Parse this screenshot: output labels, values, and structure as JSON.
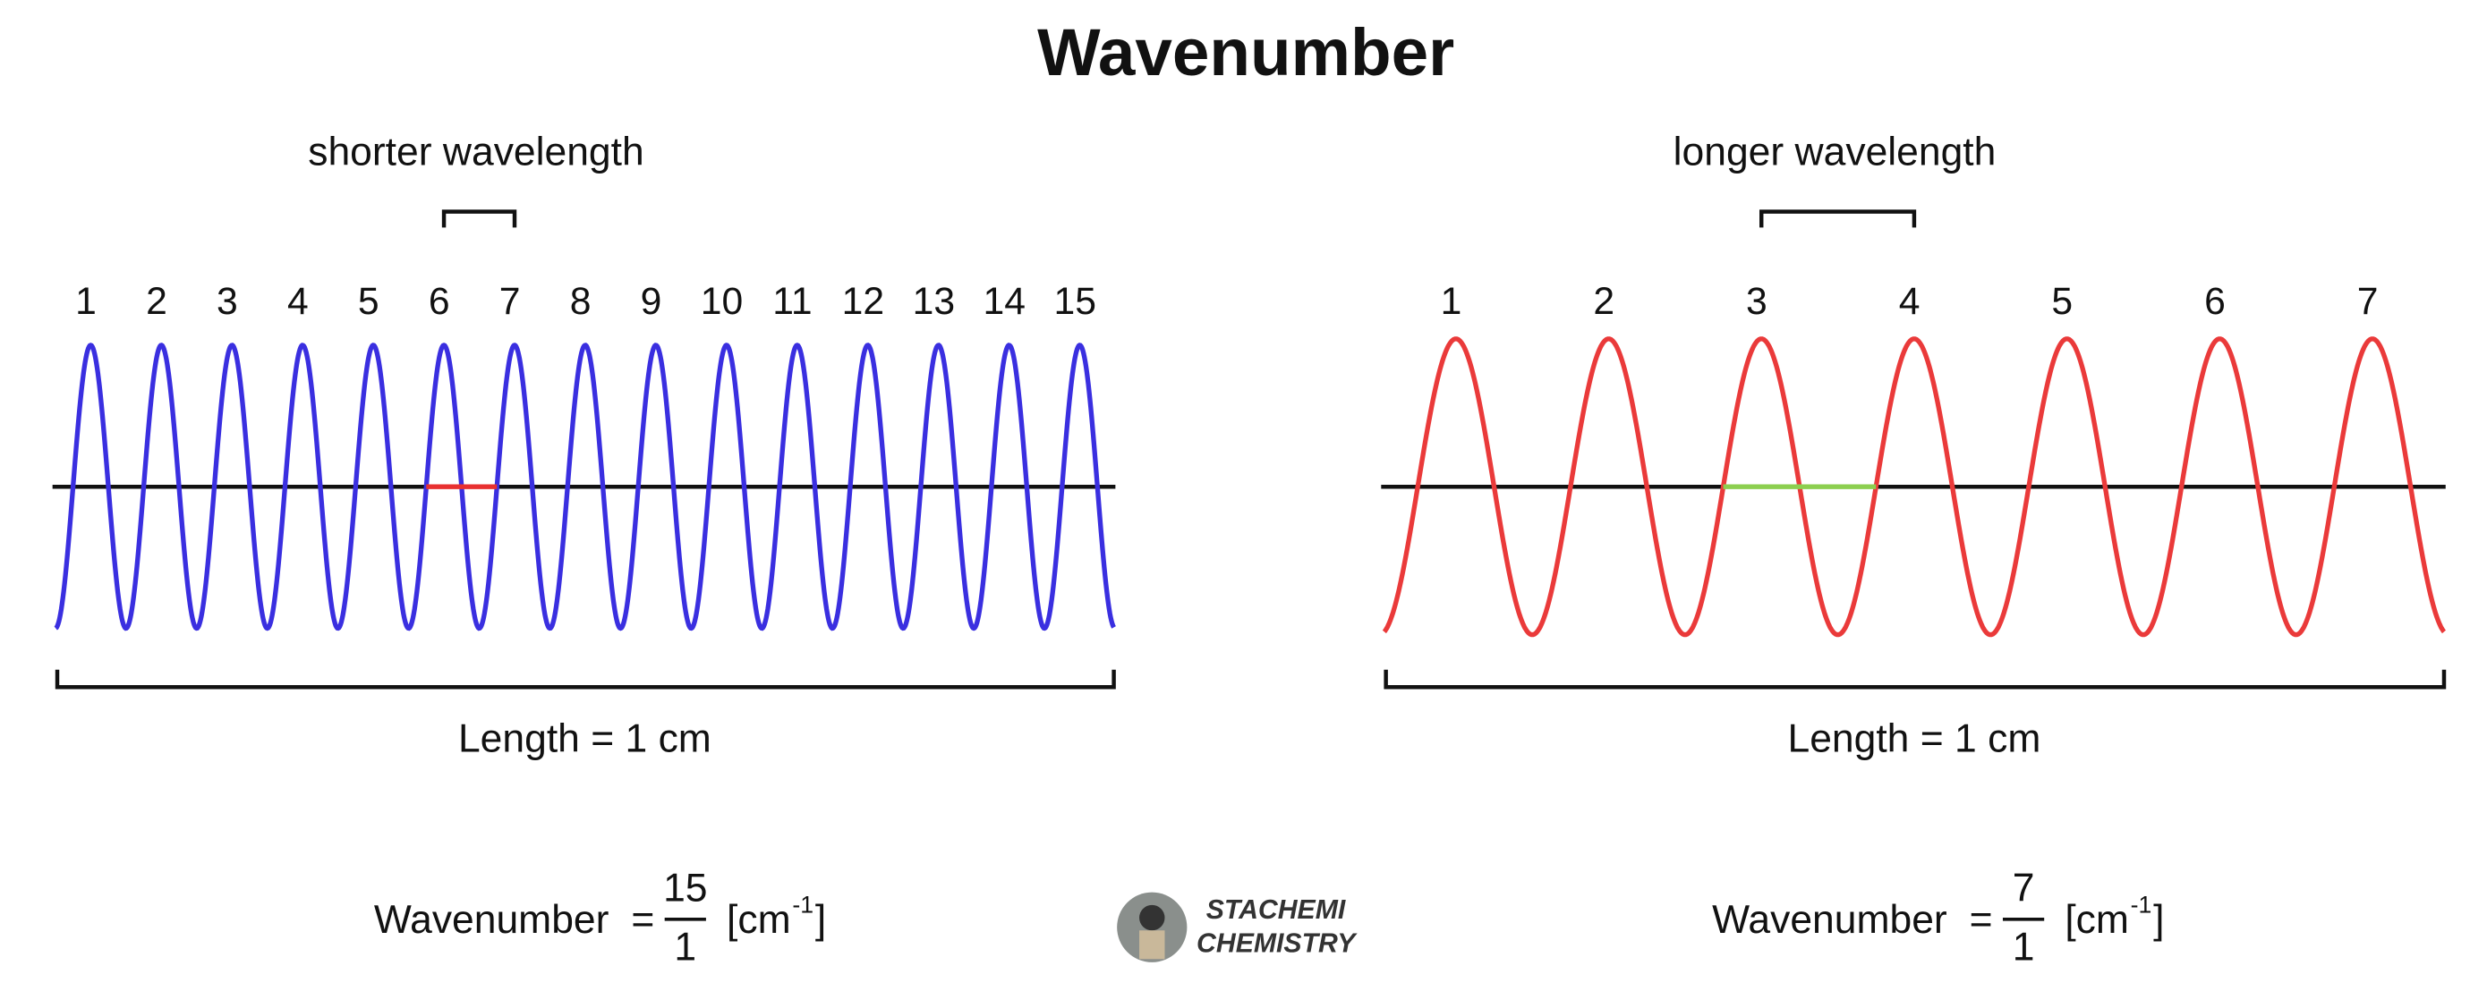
{
  "title": "Wavenumber",
  "panels": [
    {
      "caption": "shorter  wavelength",
      "peaks": [
        "1",
        "2",
        "3",
        "4",
        "5",
        "6",
        "7",
        "8",
        "9",
        "10",
        "11",
        "12",
        "13",
        "14",
        "15"
      ],
      "length": "Length = 1 cm",
      "formula": {
        "label": "Wavenumber",
        "equals": "=",
        "numerator": "15",
        "denominator": "1",
        "unit": "[cm",
        "exponent": "-1",
        "close": "]"
      }
    },
    {
      "caption": "longer  wavelength",
      "peaks": [
        "1",
        "2",
        "3",
        "4",
        "5",
        "6",
        "7"
      ],
      "length": "Length = 1 cm",
      "formula": {
        "label": "Wavenumber",
        "equals": "=",
        "numerator": "7",
        "denominator": "1",
        "unit": "[cm",
        "exponent": "-1",
        "close": "]"
      }
    }
  ],
  "logo": {
    "line1": "STACHEMI",
    "line2": "CHEMISTRY"
  }
}
